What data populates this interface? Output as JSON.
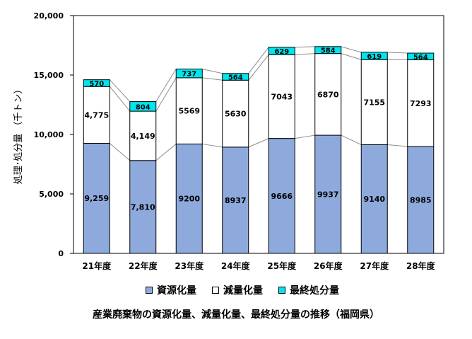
{
  "chart_data": {
    "type": "bar",
    "stacked": true,
    "title": "産業廃棄物の資源化量、減量化量、最終処分量の推移（福岡県）",
    "ylabel": "処理･処分量 （千トン）",
    "xlabel": "",
    "ylim": [
      0,
      20000
    ],
    "yticks": [
      0,
      5000,
      10000,
      15000,
      20000
    ],
    "ytick_labels": [
      "0",
      "5,000",
      "10,000",
      "15,000",
      "20,000"
    ],
    "categories": [
      "21年度",
      "22年度",
      "23年度",
      "24年度",
      "25年度",
      "26年度",
      "27年度",
      "28年度"
    ],
    "series": [
      {
        "name": "資源化量",
        "color": "#8eaadc",
        "values": [
          9259,
          7810,
          9200,
          8937,
          9666,
          9937,
          9140,
          8985
        ],
        "labels": [
          "9,259",
          "7,810",
          "9200",
          "8937",
          "9666",
          "9937",
          "9140",
          "8985"
        ]
      },
      {
        "name": "減量化量",
        "color": "#ffffff",
        "values": [
          4775,
          4149,
          5569,
          5630,
          7043,
          6870,
          7155,
          7293
        ],
        "labels": [
          "4,775",
          "4,149",
          "5569",
          "5630",
          "7043",
          "6870",
          "7155",
          "7293"
        ]
      },
      {
        "name": "最終処分量",
        "color": "#00e5ee",
        "values": [
          570,
          804,
          737,
          564,
          629,
          584,
          619,
          564
        ],
        "labels": [
          "570",
          "804",
          "737",
          "564",
          "629",
          "584",
          "619",
          "564"
        ]
      }
    ],
    "legend_position": "bottom",
    "grid": false,
    "series_lines": true
  }
}
